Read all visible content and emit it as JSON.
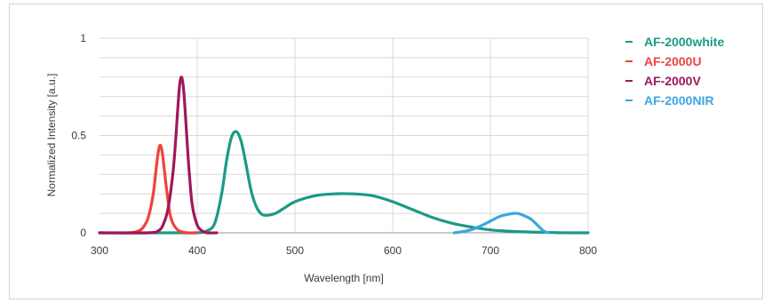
{
  "chart_data": {
    "type": "line",
    "xlabel": "Wavelength [nm]",
    "ylabel": "Normalized Intensity [a.u.]",
    "xlim": [
      300,
      800
    ],
    "ylim": [
      0,
      1
    ],
    "x_ticks": [
      "300",
      "400",
      "500",
      "600",
      "700",
      "800"
    ],
    "y_ticks": [
      "0",
      "0.5",
      "1"
    ],
    "grid": true,
    "legend_position": "right",
    "series": [
      {
        "name": "AF-2000white",
        "color": "#1a9a86",
        "x": [
          300,
          380,
          400,
          410,
          418,
          425,
          430,
          435,
          440,
          445,
          450,
          455,
          460,
          465,
          470,
          480,
          490,
          500,
          520,
          540,
          560,
          580,
          600,
          620,
          640,
          660,
          680,
          700,
          720,
          740,
          760,
          780,
          800
        ],
        "y": [
          0.0,
          0.0,
          0.0,
          0.01,
          0.05,
          0.2,
          0.37,
          0.49,
          0.52,
          0.47,
          0.35,
          0.22,
          0.14,
          0.1,
          0.09,
          0.1,
          0.13,
          0.16,
          0.19,
          0.2,
          0.2,
          0.19,
          0.16,
          0.12,
          0.08,
          0.05,
          0.03,
          0.015,
          0.008,
          0.004,
          0.002,
          0.0,
          0.0
        ]
      },
      {
        "name": "AF-2000U",
        "color": "#f0433a",
        "x": [
          300,
          330,
          340,
          345,
          350,
          355,
          358,
          360,
          362,
          364,
          366,
          368,
          370,
          372,
          375,
          380,
          385,
          390,
          400
        ],
        "y": [
          0.0,
          0.0,
          0.01,
          0.03,
          0.08,
          0.2,
          0.33,
          0.41,
          0.45,
          0.42,
          0.34,
          0.25,
          0.17,
          0.1,
          0.05,
          0.015,
          0.004,
          0.0,
          0.0
        ]
      },
      {
        "name": "AF-2000V",
        "color": "#a0185a",
        "x": [
          300,
          350,
          360,
          365,
          370,
          375,
          378,
          380,
          382,
          384,
          386,
          388,
          390,
          392,
          395,
          400,
          405,
          410,
          420
        ],
        "y": [
          0.0,
          0.0,
          0.01,
          0.04,
          0.12,
          0.3,
          0.48,
          0.63,
          0.76,
          0.8,
          0.74,
          0.6,
          0.44,
          0.3,
          0.14,
          0.04,
          0.01,
          0.0,
          0.0
        ]
      },
      {
        "name": "AF-2000NIR",
        "color": "#3aa7df",
        "x": [
          663,
          670,
          680,
          690,
          700,
          710,
          720,
          725,
          730,
          740,
          745,
          750,
          755,
          760
        ],
        "y": [
          0.0,
          0.005,
          0.015,
          0.035,
          0.06,
          0.085,
          0.097,
          0.1,
          0.097,
          0.075,
          0.055,
          0.03,
          0.008,
          0.0
        ]
      }
    ]
  }
}
